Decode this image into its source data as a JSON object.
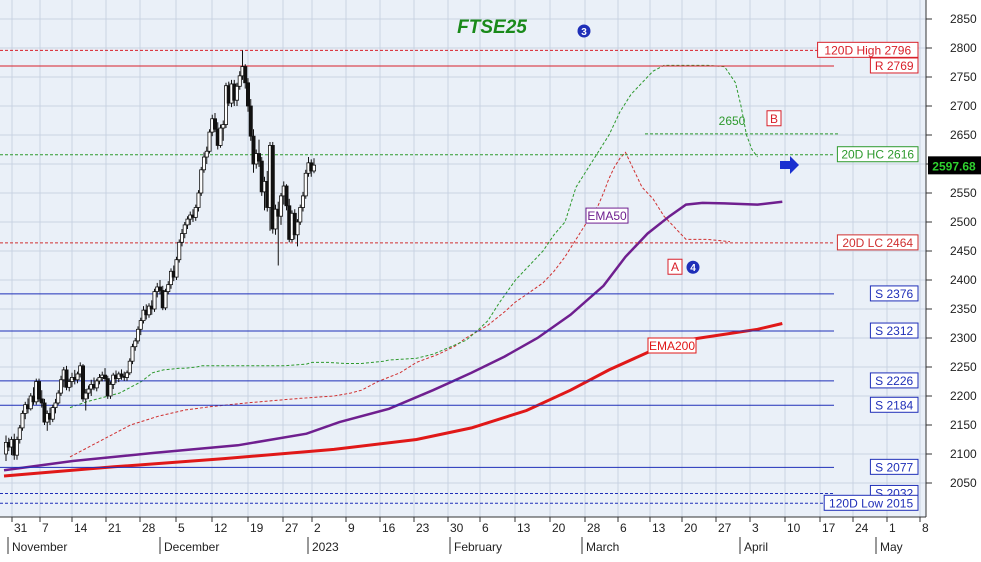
{
  "chart_data": {
    "type": "candlestick",
    "title": "FTSE25",
    "colors": {
      "background": "#eaf0f8",
      "title": "#1a8a1a",
      "candle_body": "#111111",
      "support_line": "#1f2fb8",
      "resistance_line": "#d8202a",
      "ema50": "#6f1f8f",
      "ema200": "#e01818",
      "hc_line": "#2e9a2e",
      "lc_line": "#d03030",
      "trail_stop": "#2e9a2e",
      "last_price_bg": "#000000",
      "last_price_fg": "#2fd12f"
    },
    "y_axis": {
      "min": 2000,
      "max": 2880,
      "ticks": [
        "2050",
        "2100",
        "2150",
        "2200",
        "2250",
        "2300",
        "2350",
        "2400",
        "2450",
        "2500",
        "2550",
        "2600",
        "2650",
        "2700",
        "2750",
        "2800",
        "2850"
      ]
    },
    "x_axis": {
      "day_ticks": [
        "31",
        "7",
        "14",
        "21",
        "28",
        "5",
        "12",
        "19",
        "27",
        "2",
        "9",
        "16",
        "23",
        "30",
        "6",
        "13",
        "20",
        "28",
        "6",
        "13",
        "20",
        "27",
        "3",
        "10",
        "17",
        "24",
        "1",
        "8"
      ],
      "month_labels": [
        "November",
        "December",
        "2023",
        "February",
        "March",
        "April",
        "May"
      ]
    },
    "horizontal_lines": [
      {
        "label": "120D High 2796",
        "value": 2796,
        "style": "dotted",
        "kind": "resistance"
      },
      {
        "label": "R 2769",
        "value": 2769,
        "style": "solid",
        "kind": "resistance"
      },
      {
        "label": "20D HC 2616",
        "value": 2616,
        "style": "dotted",
        "kind": "hc"
      },
      {
        "label": "20D LC 2464",
        "value": 2464,
        "style": "dotted",
        "kind": "lc"
      },
      {
        "label": "S 2376",
        "value": 2376,
        "style": "solid",
        "kind": "support"
      },
      {
        "label": "S 2312",
        "value": 2312,
        "style": "solid",
        "kind": "support"
      },
      {
        "label": "S 2226",
        "value": 2226,
        "style": "solid",
        "kind": "support"
      },
      {
        "label": "S 2184",
        "value": 2184,
        "style": "solid",
        "kind": "support"
      },
      {
        "label": "S 2077",
        "value": 2077,
        "style": "solid",
        "kind": "support"
      },
      {
        "label": "S 2032",
        "value": 2032,
        "style": "dotted",
        "kind": "support"
      },
      {
        "label": "120D Low 2015",
        "value": 2015,
        "style": "dotted",
        "kind": "support"
      }
    ],
    "last_price": "2597.68",
    "annotations": {
      "ema50_label": "EMA50",
      "ema200_label": "EMA200",
      "level_2650": "2650",
      "marker_b": "B",
      "marker_a": "A",
      "wave_3": "3",
      "wave_4": "4"
    },
    "ohlc": [
      {
        "o": 2100,
        "h": 2132,
        "l": 2088,
        "c": 2120
      },
      {
        "o": 2120,
        "h": 2128,
        "l": 2105,
        "c": 2112
      },
      {
        "o": 2112,
        "h": 2130,
        "l": 2098,
        "c": 2125
      },
      {
        "o": 2125,
        "h": 2135,
        "l": 2090,
        "c": 2098
      },
      {
        "o": 2098,
        "h": 2130,
        "l": 2090,
        "c": 2125
      },
      {
        "o": 2125,
        "h": 2150,
        "l": 2118,
        "c": 2145
      },
      {
        "o": 2145,
        "h": 2175,
        "l": 2140,
        "c": 2170
      },
      {
        "o": 2170,
        "h": 2190,
        "l": 2160,
        "c": 2185
      },
      {
        "o": 2185,
        "h": 2196,
        "l": 2170,
        "c": 2178
      },
      {
        "o": 2178,
        "h": 2205,
        "l": 2175,
        "c": 2200
      },
      {
        "o": 2200,
        "h": 2215,
        "l": 2185,
        "c": 2190
      },
      {
        "o": 2190,
        "h": 2230,
        "l": 2185,
        "c": 2225
      },
      {
        "o": 2225,
        "h": 2230,
        "l": 2190,
        "c": 2195
      },
      {
        "o": 2195,
        "h": 2210,
        "l": 2180,
        "c": 2188
      },
      {
        "o": 2188,
        "h": 2195,
        "l": 2150,
        "c": 2155
      },
      {
        "o": 2155,
        "h": 2175,
        "l": 2140,
        "c": 2170
      },
      {
        "o": 2170,
        "h": 2180,
        "l": 2150,
        "c": 2160
      },
      {
        "o": 2160,
        "h": 2185,
        "l": 2155,
        "c": 2180
      },
      {
        "o": 2180,
        "h": 2195,
        "l": 2170,
        "c": 2188
      },
      {
        "o": 2188,
        "h": 2210,
        "l": 2185,
        "c": 2205
      },
      {
        "o": 2205,
        "h": 2235,
        "l": 2200,
        "c": 2228
      },
      {
        "o": 2228,
        "h": 2250,
        "l": 2215,
        "c": 2245
      },
      {
        "o": 2245,
        "h": 2252,
        "l": 2210,
        "c": 2215
      },
      {
        "o": 2215,
        "h": 2230,
        "l": 2208,
        "c": 2225
      },
      {
        "o": 2225,
        "h": 2240,
        "l": 2215,
        "c": 2232
      },
      {
        "o": 2232,
        "h": 2245,
        "l": 2220,
        "c": 2228
      },
      {
        "o": 2228,
        "h": 2242,
        "l": 2222,
        "c": 2238
      },
      {
        "o": 2238,
        "h": 2258,
        "l": 2232,
        "c": 2252
      },
      {
        "o": 2252,
        "h": 2255,
        "l": 2190,
        "c": 2195
      },
      {
        "o": 2195,
        "h": 2212,
        "l": 2175,
        "c": 2205
      },
      {
        "o": 2205,
        "h": 2218,
        "l": 2195,
        "c": 2212
      },
      {
        "o": 2212,
        "h": 2228,
        "l": 2200,
        "c": 2220
      },
      {
        "o": 2220,
        "h": 2232,
        "l": 2210,
        "c": 2214
      },
      {
        "o": 2214,
        "h": 2230,
        "l": 2208,
        "c": 2226
      },
      {
        "o": 2226,
        "h": 2238,
        "l": 2220,
        "c": 2232
      },
      {
        "o": 2232,
        "h": 2242,
        "l": 2225,
        "c": 2236
      },
      {
        "o": 2236,
        "h": 2248,
        "l": 2225,
        "c": 2230
      },
      {
        "o": 2230,
        "h": 2235,
        "l": 2195,
        "c": 2200
      },
      {
        "o": 2200,
        "h": 2225,
        "l": 2195,
        "c": 2220
      },
      {
        "o": 2220,
        "h": 2240,
        "l": 2212,
        "c": 2236
      },
      {
        "o": 2236,
        "h": 2244,
        "l": 2222,
        "c": 2230
      },
      {
        "o": 2230,
        "h": 2242,
        "l": 2224,
        "c": 2238
      },
      {
        "o": 2238,
        "h": 2246,
        "l": 2228,
        "c": 2234
      },
      {
        "o": 2234,
        "h": 2242,
        "l": 2226,
        "c": 2232
      },
      {
        "o": 2232,
        "h": 2244,
        "l": 2226,
        "c": 2240
      },
      {
        "o": 2240,
        "h": 2265,
        "l": 2236,
        "c": 2260
      },
      {
        "o": 2260,
        "h": 2290,
        "l": 2255,
        "c": 2285
      },
      {
        "o": 2285,
        "h": 2300,
        "l": 2278,
        "c": 2295
      },
      {
        "o": 2295,
        "h": 2320,
        "l": 2290,
        "c": 2315
      },
      {
        "o": 2315,
        "h": 2335,
        "l": 2305,
        "c": 2330
      },
      {
        "o": 2330,
        "h": 2355,
        "l": 2325,
        "c": 2348
      },
      {
        "o": 2348,
        "h": 2358,
        "l": 2332,
        "c": 2340
      },
      {
        "o": 2340,
        "h": 2360,
        "l": 2335,
        "c": 2355
      },
      {
        "o": 2355,
        "h": 2365,
        "l": 2340,
        "c": 2350
      },
      {
        "o": 2350,
        "h": 2385,
        "l": 2345,
        "c": 2380
      },
      {
        "o": 2380,
        "h": 2395,
        "l": 2370,
        "c": 2388
      },
      {
        "o": 2388,
        "h": 2400,
        "l": 2375,
        "c": 2382
      },
      {
        "o": 2382,
        "h": 2390,
        "l": 2348,
        "c": 2352
      },
      {
        "o": 2352,
        "h": 2385,
        "l": 2348,
        "c": 2380
      },
      {
        "o": 2380,
        "h": 2398,
        "l": 2375,
        "c": 2392
      },
      {
        "o": 2392,
        "h": 2420,
        "l": 2385,
        "c": 2415
      },
      {
        "o": 2415,
        "h": 2425,
        "l": 2398,
        "c": 2405
      },
      {
        "o": 2405,
        "h": 2440,
        "l": 2400,
        "c": 2435
      },
      {
        "o": 2435,
        "h": 2470,
        "l": 2430,
        "c": 2465
      },
      {
        "o": 2465,
        "h": 2488,
        "l": 2458,
        "c": 2480
      },
      {
        "o": 2480,
        "h": 2500,
        "l": 2472,
        "c": 2495
      },
      {
        "o": 2495,
        "h": 2510,
        "l": 2488,
        "c": 2505
      },
      {
        "o": 2505,
        "h": 2518,
        "l": 2495,
        "c": 2512
      },
      {
        "o": 2512,
        "h": 2522,
        "l": 2500,
        "c": 2508
      },
      {
        "o": 2508,
        "h": 2530,
        "l": 2502,
        "c": 2525
      },
      {
        "o": 2525,
        "h": 2555,
        "l": 2518,
        "c": 2550
      },
      {
        "o": 2550,
        "h": 2595,
        "l": 2545,
        "c": 2590
      },
      {
        "o": 2590,
        "h": 2620,
        "l": 2585,
        "c": 2612
      },
      {
        "o": 2612,
        "h": 2630,
        "l": 2600,
        "c": 2622
      },
      {
        "o": 2622,
        "h": 2660,
        "l": 2618,
        "c": 2655
      },
      {
        "o": 2655,
        "h": 2685,
        "l": 2648,
        "c": 2678
      },
      {
        "o": 2678,
        "h": 2688,
        "l": 2655,
        "c": 2660
      },
      {
        "o": 2660,
        "h": 2672,
        "l": 2625,
        "c": 2632
      },
      {
        "o": 2632,
        "h": 2668,
        "l": 2628,
        "c": 2662
      },
      {
        "o": 2662,
        "h": 2675,
        "l": 2640,
        "c": 2668
      },
      {
        "o": 2668,
        "h": 2740,
        "l": 2662,
        "c": 2735
      },
      {
        "o": 2735,
        "h": 2742,
        "l": 2700,
        "c": 2705
      },
      {
        "o": 2705,
        "h": 2745,
        "l": 2698,
        "c": 2738
      },
      {
        "o": 2738,
        "h": 2745,
        "l": 2700,
        "c": 2710
      },
      {
        "o": 2710,
        "h": 2740,
        "l": 2700,
        "c": 2734
      },
      {
        "o": 2734,
        "h": 2760,
        "l": 2728,
        "c": 2752
      },
      {
        "o": 2752,
        "h": 2796,
        "l": 2745,
        "c": 2768
      },
      {
        "o": 2768,
        "h": 2772,
        "l": 2730,
        "c": 2740
      },
      {
        "o": 2740,
        "h": 2748,
        "l": 2690,
        "c": 2700
      },
      {
        "o": 2700,
        "h": 2712,
        "l": 2640,
        "c": 2648
      },
      {
        "o": 2648,
        "h": 2660,
        "l": 2585,
        "c": 2600
      },
      {
        "o": 2600,
        "h": 2625,
        "l": 2592,
        "c": 2618
      },
      {
        "o": 2618,
        "h": 2642,
        "l": 2595,
        "c": 2605
      },
      {
        "o": 2605,
        "h": 2612,
        "l": 2545,
        "c": 2552
      },
      {
        "o": 2552,
        "h": 2578,
        "l": 2520,
        "c": 2570
      },
      {
        "o": 2570,
        "h": 2588,
        "l": 2518,
        "c": 2525
      },
      {
        "o": 2525,
        "h": 2638,
        "l": 2485,
        "c": 2632
      },
      {
        "o": 2632,
        "h": 2638,
        "l": 2480,
        "c": 2488
      },
      {
        "o": 2488,
        "h": 2530,
        "l": 2478,
        "c": 2522
      },
      {
        "o": 2522,
        "h": 2535,
        "l": 2425,
        "c": 2510
      },
      {
        "o": 2510,
        "h": 2550,
        "l": 2495,
        "c": 2545
      },
      {
        "o": 2545,
        "h": 2570,
        "l": 2530,
        "c": 2562
      },
      {
        "o": 2562,
        "h": 2565,
        "l": 2520,
        "c": 2528
      },
      {
        "o": 2528,
        "h": 2540,
        "l": 2465,
        "c": 2470
      },
      {
        "o": 2470,
        "h": 2520,
        "l": 2465,
        "c": 2515
      },
      {
        "o": 2515,
        "h": 2522,
        "l": 2470,
        "c": 2478
      },
      {
        "o": 2478,
        "h": 2505,
        "l": 2458,
        "c": 2500
      },
      {
        "o": 2500,
        "h": 2530,
        "l": 2495,
        "c": 2525
      },
      {
        "o": 2525,
        "h": 2552,
        "l": 2518,
        "c": 2545
      },
      {
        "o": 2545,
        "h": 2590,
        "l": 2540,
        "c": 2584
      },
      {
        "o": 2584,
        "h": 2612,
        "l": 2578,
        "c": 2602
      },
      {
        "o": 2602,
        "h": 2608,
        "l": 2578,
        "c": 2588
      },
      {
        "o": 2588,
        "h": 2610,
        "l": 2584,
        "c": 2598
      }
    ],
    "ema50": [
      [
        0,
        2072
      ],
      [
        25,
        2088
      ],
      [
        55,
        2102
      ],
      [
        85,
        2115
      ],
      [
        110,
        2135
      ],
      [
        122,
        2155
      ],
      [
        140,
        2178
      ],
      [
        156,
        2210
      ],
      [
        170,
        2240
      ],
      [
        182,
        2268
      ],
      [
        194,
        2300
      ],
      [
        206,
        2340
      ],
      [
        218,
        2390
      ],
      [
        226,
        2440
      ],
      [
        234,
        2480
      ],
      [
        242,
        2510
      ],
      [
        248,
        2530
      ],
      [
        254,
        2533
      ],
      [
        262,
        2532
      ],
      [
        274,
        2530
      ],
      [
        283,
        2535
      ]
    ],
    "ema200": [
      [
        0,
        2062
      ],
      [
        40,
        2078
      ],
      [
        80,
        2092
      ],
      [
        120,
        2108
      ],
      [
        150,
        2125
      ],
      [
        170,
        2145
      ],
      [
        190,
        2175
      ],
      [
        206,
        2210
      ],
      [
        220,
        2245
      ],
      [
        234,
        2275
      ],
      [
        246,
        2295
      ],
      [
        260,
        2305
      ],
      [
        274,
        2315
      ],
      [
        283,
        2325
      ]
    ],
    "trail_stop": [
      [
        24,
        2180
      ],
      [
        30,
        2190
      ],
      [
        42,
        2205
      ],
      [
        50,
        2225
      ],
      [
        54,
        2240
      ],
      [
        58,
        2245
      ],
      [
        64,
        2248
      ],
      [
        66,
        2248
      ],
      [
        70,
        2250
      ],
      [
        72,
        2252
      ],
      [
        76,
        2252
      ],
      [
        80,
        2252
      ],
      [
        88,
        2252
      ],
      [
        96,
        2252
      ],
      [
        102,
        2252
      ],
      [
        110,
        2255
      ],
      [
        112,
        2258
      ],
      [
        118,
        2258
      ],
      [
        124,
        2256
      ],
      [
        130,
        2256
      ],
      [
        134,
        2258
      ],
      [
        138,
        2260
      ],
      [
        140,
        2262
      ],
      [
        150,
        2265
      ],
      [
        156,
        2272
      ],
      [
        160,
        2280
      ],
      [
        168,
        2296
      ],
      [
        172,
        2312
      ],
      [
        176,
        2330
      ],
      [
        180,
        2360
      ],
      [
        186,
        2400
      ],
      [
        190,
        2420
      ],
      [
        196,
        2450
      ],
      [
        200,
        2478
      ],
      [
        204,
        2500
      ],
      [
        206,
        2530
      ],
      [
        208,
        2560
      ],
      [
        212,
        2590
      ],
      [
        216,
        2620
      ],
      [
        220,
        2650
      ],
      [
        224,
        2690
      ],
      [
        228,
        2720
      ],
      [
        232,
        2740
      ],
      [
        236,
        2760
      ],
      [
        240,
        2770
      ],
      [
        256,
        2770
      ],
      [
        262,
        2768
      ],
      [
        266,
        2740
      ],
      [
        268,
        2700
      ],
      [
        270,
        2650
      ],
      [
        272,
        2625
      ],
      [
        274,
        2612
      ]
    ],
    "lc_dashed": [
      [
        24,
        2095
      ],
      [
        34,
        2120
      ],
      [
        46,
        2150
      ],
      [
        56,
        2165
      ],
      [
        66,
        2176
      ],
      [
        76,
        2182
      ],
      [
        88,
        2188
      ],
      [
        98,
        2192
      ],
      [
        108,
        2196
      ],
      [
        120,
        2200
      ],
      [
        126,
        2205
      ],
      [
        130,
        2210
      ],
      [
        136,
        2225
      ],
      [
        144,
        2240
      ],
      [
        150,
        2258
      ],
      [
        158,
        2272
      ],
      [
        164,
        2286
      ],
      [
        168,
        2300
      ],
      [
        176,
        2322
      ],
      [
        182,
        2345
      ],
      [
        186,
        2362
      ],
      [
        190,
        2375
      ],
      [
        196,
        2395
      ],
      [
        200,
        2415
      ],
      [
        204,
        2440
      ],
      [
        208,
        2470
      ],
      [
        212,
        2500
      ],
      [
        216,
        2528
      ],
      [
        218,
        2550
      ],
      [
        220,
        2575
      ],
      [
        222,
        2595
      ],
      [
        224,
        2610
      ],
      [
        226,
        2620
      ],
      [
        228,
        2600
      ],
      [
        232,
        2560
      ],
      [
        236,
        2540
      ],
      [
        240,
        2510
      ],
      [
        244,
        2490
      ],
      [
        248,
        2470
      ],
      [
        256,
        2470
      ],
      [
        264,
        2466
      ]
    ]
  }
}
